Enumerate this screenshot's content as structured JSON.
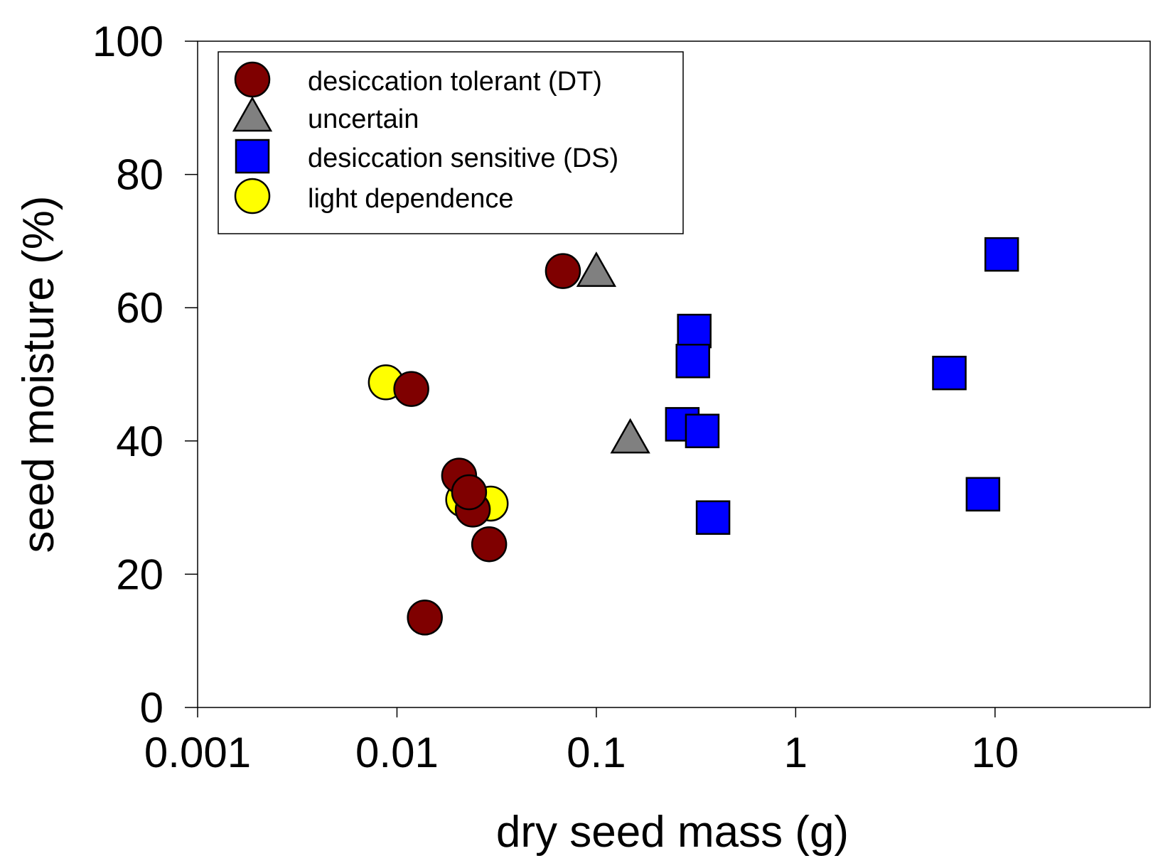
{
  "chart_data": {
    "type": "scatter",
    "title": "",
    "xlabel": "dry seed mass (g)",
    "ylabel": "seed moisture (%)",
    "xscale": "log",
    "xlim": [
      0.001,
      60
    ],
    "ylim": [
      0,
      100
    ],
    "x_ticks": [
      0.001,
      0.01,
      0.1,
      1,
      10
    ],
    "x_tick_labels": [
      "0.001",
      "0.01",
      "0.1",
      "1",
      "10"
    ],
    "y_ticks": [
      0,
      20,
      40,
      60,
      80,
      100
    ],
    "y_tick_labels": [
      "0",
      "20",
      "40",
      "60",
      "80",
      "100"
    ],
    "grid": false,
    "legend_position": "top-left",
    "series": [
      {
        "name": "desiccation tolerant (DT)",
        "marker": "circle",
        "color": "#7f0000",
        "points": [
          [
            0.068,
            65.5
          ],
          [
            0.0118,
            47.8
          ],
          [
            0.0205,
            34.8
          ],
          [
            0.024,
            29.7
          ],
          [
            0.023,
            32.3
          ],
          [
            0.029,
            24.5
          ],
          [
            0.0138,
            13.5
          ]
        ]
      },
      {
        "name": "uncertain",
        "marker": "triangle",
        "color": "#808080",
        "points": [
          [
            0.1,
            65.5
          ],
          [
            0.148,
            40.5
          ]
        ]
      },
      {
        "name": "desiccation sensitive (DS)",
        "marker": "square",
        "color": "#0000ff",
        "points": [
          [
            10.8,
            68.0
          ],
          [
            0.31,
            56.5
          ],
          [
            0.305,
            52.0
          ],
          [
            5.9,
            50.2
          ],
          [
            0.27,
            42.5
          ],
          [
            0.34,
            41.5
          ],
          [
            8.7,
            32.0
          ],
          [
            0.385,
            28.5
          ]
        ]
      },
      {
        "name": "light dependence",
        "marker": "circle",
        "color": "#ffff00",
        "points": [
          [
            0.0088,
            48.8
          ],
          [
            0.0215,
            31.2
          ],
          [
            0.0295,
            30.6
          ]
        ]
      }
    ]
  }
}
